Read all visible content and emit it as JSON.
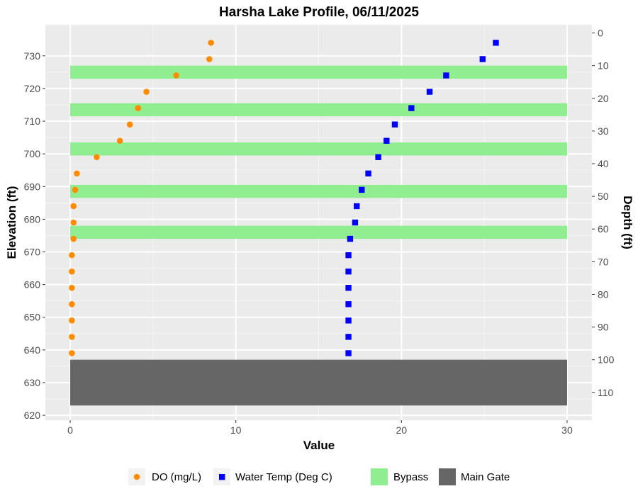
{
  "chart_data": {
    "type": "scatter",
    "title": "Harsha Lake Profile,  06/11/2025",
    "xlabel": "Value",
    "ylabel": "Elevation (ft)",
    "y2label": "Depth (ft)",
    "xlim": [
      -1.5,
      31.5
    ],
    "ylim": [
      618.5,
      739.5
    ],
    "y2lim": [
      118.5,
      -2.5
    ],
    "xticks": [
      0,
      10,
      20,
      30
    ],
    "yticks": [
      620,
      630,
      640,
      650,
      660,
      670,
      680,
      690,
      700,
      710,
      720,
      730
    ],
    "y2ticks": [
      0,
      10,
      20,
      30,
      40,
      50,
      60,
      70,
      80,
      90,
      100,
      110
    ],
    "grid": true,
    "legend_position": "bottom",
    "series": [
      {
        "name": "DO (mg/L)",
        "marker": "circle",
        "color": "#ff8c00",
        "points": [
          {
            "x": 8.5,
            "y": 734
          },
          {
            "x": 8.4,
            "y": 729
          },
          {
            "x": 6.4,
            "y": 724
          },
          {
            "x": 4.6,
            "y": 719
          },
          {
            "x": 4.1,
            "y": 714
          },
          {
            "x": 3.6,
            "y": 709
          },
          {
            "x": 3.0,
            "y": 704
          },
          {
            "x": 1.6,
            "y": 699
          },
          {
            "x": 0.4,
            "y": 694
          },
          {
            "x": 0.3,
            "y": 689
          },
          {
            "x": 0.2,
            "y": 684
          },
          {
            "x": 0.2,
            "y": 679
          },
          {
            "x": 0.2,
            "y": 674
          },
          {
            "x": 0.1,
            "y": 669
          },
          {
            "x": 0.1,
            "y": 664
          },
          {
            "x": 0.1,
            "y": 659
          },
          {
            "x": 0.1,
            "y": 654
          },
          {
            "x": 0.1,
            "y": 649
          },
          {
            "x": 0.1,
            "y": 644
          },
          {
            "x": 0.1,
            "y": 639
          }
        ]
      },
      {
        "name": "Water Temp (Deg C)",
        "marker": "square",
        "color": "#0000ff",
        "points": [
          {
            "x": 25.7,
            "y": 734
          },
          {
            "x": 24.9,
            "y": 729
          },
          {
            "x": 22.7,
            "y": 724
          },
          {
            "x": 21.7,
            "y": 719
          },
          {
            "x": 20.6,
            "y": 714
          },
          {
            "x": 19.6,
            "y": 709
          },
          {
            "x": 19.1,
            "y": 704
          },
          {
            "x": 18.6,
            "y": 699
          },
          {
            "x": 18.0,
            "y": 694
          },
          {
            "x": 17.6,
            "y": 689
          },
          {
            "x": 17.3,
            "y": 684
          },
          {
            "x": 17.2,
            "y": 679
          },
          {
            "x": 16.9,
            "y": 674
          },
          {
            "x": 16.8,
            "y": 669
          },
          {
            "x": 16.8,
            "y": 664
          },
          {
            "x": 16.8,
            "y": 659
          },
          {
            "x": 16.8,
            "y": 654
          },
          {
            "x": 16.8,
            "y": 649
          },
          {
            "x": 16.8,
            "y": 644
          },
          {
            "x": 16.8,
            "y": 639
          }
        ]
      }
    ],
    "bands": [
      {
        "name": "Bypass",
        "color": "#90ee90",
        "x_range": [
          0,
          30
        ],
        "y_ranges": [
          [
            723,
            727
          ],
          [
            711.5,
            715.5
          ],
          [
            699.5,
            703.5
          ],
          [
            686.5,
            690.5
          ],
          [
            674,
            678
          ]
        ]
      },
      {
        "name": "Main Gate",
        "color": "#666666",
        "x_range": [
          0,
          30
        ],
        "y_ranges": [
          [
            623,
            637
          ]
        ]
      }
    ],
    "legend": [
      {
        "label": "DO (mg/L)",
        "kind": "circle",
        "color": "#ff8c00"
      },
      {
        "label": "Water Temp (Deg C)",
        "kind": "square",
        "color": "#0000ff"
      },
      {
        "label": "Bypass",
        "kind": "fill",
        "color": "#90ee90"
      },
      {
        "label": "Main Gate",
        "kind": "fill",
        "color": "#666666"
      }
    ],
    "colors": {
      "panel": "#ebebeb",
      "grid_major": "#ffffff",
      "tick_text": "#4d4d4d"
    }
  }
}
